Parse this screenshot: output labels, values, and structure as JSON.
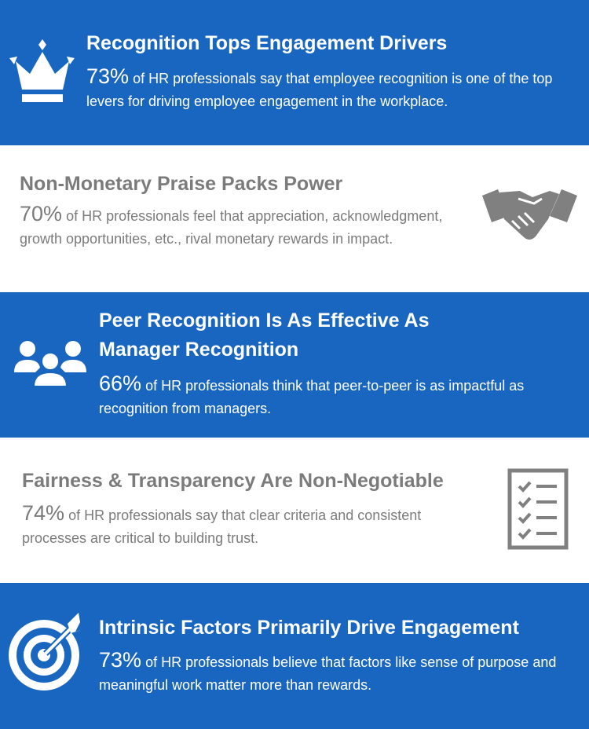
{
  "panels": [
    {
      "title": "Recognition Tops Engagement Drivers",
      "stat": "73%",
      "text": "of HR professionals say that employee recognition is one of the top levers for driving employee engagement in the workplace."
    },
    {
      "title": "Non-Monetary Praise Packs Power",
      "stat": "70%",
      "text": "of HR professionals feel that appreciation, acknowledgment, growth opportunities, etc., rival monetary rewards in impact."
    },
    {
      "title": "Peer Recognition Is As Effective As Manager Recognition",
      "stat": "66%",
      "text": "of HR professionals think that peer-to-peer is as impactful as recognition from managers."
    },
    {
      "title": "Fairness & Transparency Are Non-Negotiable",
      "stat": "74%",
      "text": "of HR professionals say that clear criteria and consistent processes are critical to building trust."
    },
    {
      "title": "Intrinsic Factors Primarily Drive Engagement",
      "stat": "73%",
      "text": "of HR professionals believe that factors like sense of purpose and meaningful work matter more than rewards."
    }
  ]
}
